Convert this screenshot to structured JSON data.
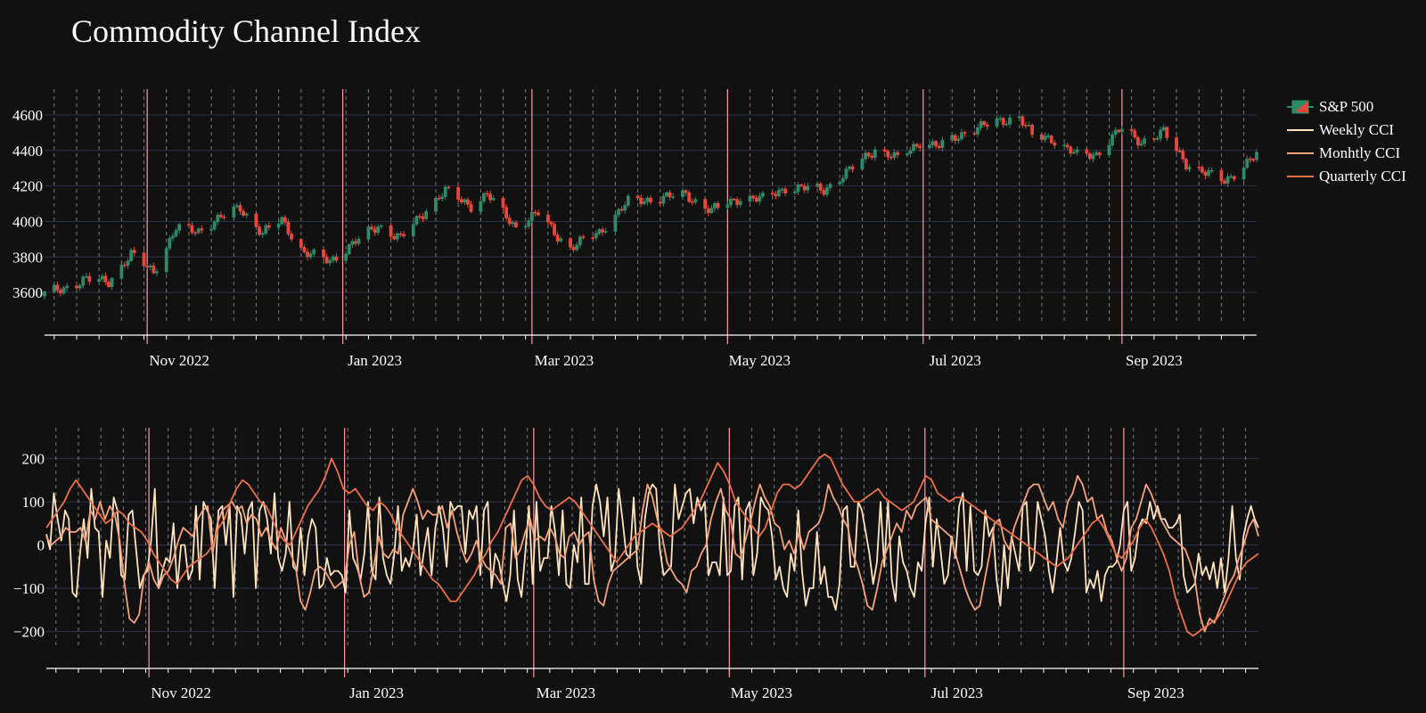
{
  "chart": {
    "title": "Commodity Channel Index",
    "colors": {
      "background": "#111111",
      "up": "#2e8b68",
      "down": "#e8483b",
      "weekly": "#ffe3bd",
      "monthly": "#f7a27a",
      "quarterly": "#ef7046",
      "month_line": "#ff9aa8",
      "grid": "#2a3344",
      "dashed": "#a0a0a0"
    },
    "legend": [
      {
        "label": "S&P 500",
        "swatch": "candle"
      },
      {
        "label": "Weekly CCI",
        "swatch": "weekly"
      },
      {
        "label": "Monhtly CCI",
        "swatch": "monthly"
      },
      {
        "label": "Quarterly CCI",
        "swatch": "quarterly"
      }
    ]
  },
  "chart_data": [
    {
      "type": "candlestick",
      "series_name": "S&P 500",
      "x_range": [
        "2022-09-30",
        "2023-10-13"
      ],
      "ylim": [
        3430,
        4670
      ],
      "yticks": [
        3600,
        3800,
        4000,
        4200,
        4400,
        4600
      ],
      "month_ticks": [
        {
          "date": "2022-11-01",
          "label": "Nov 2022"
        },
        {
          "date": "2023-01-01",
          "label": "Jan 2023"
        },
        {
          "date": "2023-03-01",
          "label": "Mar 2023"
        },
        {
          "date": "2023-05-01",
          "label": "May 2023"
        },
        {
          "date": "2023-07-01",
          "label": "Jul 2023"
        },
        {
          "date": "2023-09-01",
          "label": "Sep 2023"
        }
      ],
      "close_anchors": [
        [
          "2022-09-30",
          3590
        ],
        [
          "2022-10-13",
          3670
        ],
        [
          "2022-10-20",
          3665
        ],
        [
          "2022-10-27",
          3810
        ],
        [
          "2022-11-03",
          3720
        ],
        [
          "2022-11-10",
          3956
        ],
        [
          "2022-11-17",
          3950
        ],
        [
          "2022-11-30",
          4080
        ],
        [
          "2022-12-07",
          3930
        ],
        [
          "2022-12-13",
          4010
        ],
        [
          "2022-12-20",
          3820
        ],
        [
          "2022-12-28",
          3780
        ],
        [
          "2023-01-06",
          3895
        ],
        [
          "2023-01-12",
          3980
        ],
        [
          "2023-01-19",
          3900
        ],
        [
          "2023-01-27",
          4070
        ],
        [
          "2023-02-02",
          4170
        ],
        [
          "2023-02-10",
          4090
        ],
        [
          "2023-02-15",
          4150
        ],
        [
          "2023-02-24",
          3970
        ],
        [
          "2023-03-03",
          4045
        ],
        [
          "2023-03-09",
          3920
        ],
        [
          "2023-03-13",
          3850
        ],
        [
          "2023-03-22",
          3940
        ],
        [
          "2023-03-31",
          4110
        ],
        [
          "2023-04-18",
          4150
        ],
        [
          "2023-04-26",
          4060
        ],
        [
          "2023-05-05",
          4135
        ],
        [
          "2023-05-12",
          4125
        ],
        [
          "2023-05-19",
          4190
        ],
        [
          "2023-05-31",
          4180
        ],
        [
          "2023-06-07",
          4270
        ],
        [
          "2023-06-16",
          4410
        ],
        [
          "2023-06-23",
          4350
        ],
        [
          "2023-06-30",
          4450
        ],
        [
          "2023-07-06",
          4420
        ],
        [
          "2023-07-14",
          4505
        ],
        [
          "2023-07-26",
          4570
        ],
        [
          "2023-07-31",
          4590
        ],
        [
          "2023-08-04",
          4480
        ],
        [
          "2023-08-10",
          4470
        ],
        [
          "2023-08-18",
          4370
        ],
        [
          "2023-08-24",
          4380
        ],
        [
          "2023-08-31",
          4510
        ],
        [
          "2023-09-01",
          4515
        ],
        [
          "2023-09-07",
          4450
        ],
        [
          "2023-09-14",
          4500
        ],
        [
          "2023-09-21",
          4330
        ],
        [
          "2023-09-27",
          4270
        ],
        [
          "2023-10-03",
          4230
        ],
        [
          "2023-10-13",
          4370
        ]
      ]
    },
    {
      "type": "line",
      "x_range": [
        "2022-09-30",
        "2023-10-13"
      ],
      "ylim": [
        -240,
        240
      ],
      "yticks": [
        -200,
        -100,
        0,
        100,
        200
      ],
      "series": [
        {
          "name": "Weekly CCI",
          "color_key": "weekly",
          "values": [
            25,
            -10,
            120,
            60,
            10,
            80,
            60,
            -110,
            -120,
            -20,
            60,
            -30,
            130,
            40,
            30,
            -120,
            10,
            -30,
            110,
            80,
            -70,
            -80,
            70,
            80,
            -10,
            -100,
            -70,
            -60,
            10,
            130,
            -100,
            -60,
            -30,
            -40,
            50,
            -100,
            0,
            0,
            -80,
            -60,
            90,
            -80,
            100,
            80,
            60,
            -100,
            80,
            90,
            0,
            90,
            -120,
            90,
            70,
            -20,
            80,
            100,
            -100,
            80,
            100,
            60,
            -20,
            120,
            -30,
            -60,
            -20,
            100,
            -50,
            -60,
            40,
            -70,
            20,
            60,
            40,
            -100,
            -90,
            -30,
            -70,
            -60,
            -60,
            -70,
            -110,
            80,
            -30,
            -50,
            -80,
            -20,
            100,
            -60,
            -80,
            110,
            -30,
            -70,
            -90,
            -20,
            90,
            -60,
            -30,
            -50,
            -10,
            70,
            -70,
            -10,
            40,
            -70,
            40,
            90,
            40,
            -50,
            100,
            80,
            90,
            90,
            -20,
            80,
            60,
            90,
            -70,
            80,
            100,
            -100,
            -20,
            -40,
            -90,
            -130,
            -70,
            80,
            -80,
            -120,
            -20,
            90,
            -90,
            100,
            -60,
            -30,
            -30,
            90,
            30,
            -70,
            80,
            -90,
            -100,
            0,
            -40,
            110,
            -90,
            -90,
            90,
            140,
            100,
            20,
            110,
            -60,
            -30,
            130,
            60,
            -20,
            -30,
            110,
            -50,
            -90,
            60,
            120,
            140,
            130,
            -10,
            -70,
            -60,
            -50,
            140,
            60,
            90,
            120,
            130,
            50,
            110,
            80,
            100,
            -70,
            -40,
            -40,
            -70,
            110,
            -70,
            -60,
            90,
            110,
            -80,
            80,
            100,
            -70,
            -20,
            110,
            90,
            80,
            20,
            -80,
            -50,
            -100,
            -120,
            -20,
            -60,
            80,
            -60,
            -140,
            -100,
            -100,
            30,
            -90,
            -50,
            -120,
            -120,
            -150,
            -90,
            80,
            90,
            -50,
            -50,
            100,
            80,
            30,
            -20,
            -90,
            -40,
            100,
            -50,
            100,
            -80,
            -130,
            20,
            -40,
            -60,
            -100,
            -120,
            -40,
            -60,
            50,
            110,
            -50,
            60,
            -10,
            -90,
            -70,
            20,
            -30,
            90,
            120,
            -60,
            90,
            -60,
            -70,
            -50,
            80,
            20,
            40,
            -80,
            -140,
            0,
            -100,
            20,
            -20,
            -60,
            90,
            100,
            -60,
            -40,
            100,
            60,
            20,
            -60,
            -110,
            -40,
            40,
            -40,
            -60,
            -30,
            30,
            100,
            80,
            -110,
            -80,
            -100,
            -60,
            -130,
            -70,
            -50,
            -50,
            -40,
            0,
            80,
            100,
            -60,
            -30,
            40,
            60,
            50,
            100,
            60,
            90,
            60,
            60,
            40,
            40,
            50,
            70,
            -70,
            -110,
            -100,
            -90,
            -20,
            -70,
            -50,
            -80,
            -40,
            -100,
            -30,
            -110,
            -30,
            90,
            -30,
            -80,
            20,
            60,
            90,
            60,
            40
          ]
        },
        {
          "name": "Monhtly CCI",
          "color_key": "monthly",
          "values": [
            20,
            0,
            10,
            20,
            40,
            30,
            30,
            40,
            10,
            80,
            60,
            100,
            60,
            90,
            70,
            10,
            -90,
            -170,
            -180,
            -160,
            -70,
            -40,
            -80,
            -100,
            -70,
            -60,
            -30,
            10,
            40,
            30,
            20,
            60,
            80,
            90,
            -20,
            50,
            80,
            90,
            100,
            80,
            90,
            50,
            70,
            60,
            20,
            40,
            10,
            -10,
            40,
            10,
            -20,
            -50,
            -130,
            -150,
            -110,
            -60,
            -50,
            -60,
            -80,
            -100,
            -90,
            -80,
            0,
            30,
            -70,
            -120,
            -110,
            -50,
            20,
            -20,
            -30,
            -10,
            -20,
            70,
            100,
            130,
            100,
            60,
            80,
            70,
            70,
            90,
            40,
            80,
            30,
            -10,
            -40,
            -20,
            10,
            -30,
            -50,
            -60,
            -70,
            -90,
            40,
            50,
            -30,
            -10,
            30,
            60,
            10,
            20,
            10,
            40,
            20,
            -20,
            -30,
            20,
            30,
            0,
            20,
            30,
            -80,
            -130,
            -140,
            -90,
            -60,
            -50,
            -40,
            -30,
            -20,
            -10,
            80,
            140,
            110,
            60,
            20,
            -40,
            -60,
            -80,
            -90,
            -110,
            -60,
            -50,
            -20,
            0,
            60,
            100,
            130,
            80,
            60,
            -20,
            -30,
            10,
            50,
            100,
            140,
            110,
            90,
            50,
            40,
            -10,
            10,
            -20,
            30,
            -10,
            30,
            40,
            50,
            80,
            140,
            110,
            90,
            60,
            40,
            -20,
            -50,
            -90,
            -140,
            -150,
            -100,
            -40,
            -10,
            20,
            50,
            30,
            80,
            60,
            90,
            100,
            110,
            60,
            50,
            40,
            30,
            20,
            -20,
            -60,
            -100,
            -130,
            -150,
            -140,
            -80,
            -20,
            50,
            60,
            10,
            -10,
            40,
            70,
            100,
            130,
            140,
            140,
            110,
            80,
            100,
            60,
            40,
            100,
            120,
            160,
            140,
            100,
            110,
            60,
            70,
            30,
            10,
            -30,
            -60,
            -30,
            40,
            60,
            100,
            140,
            120,
            90,
            60,
            40,
            20,
            10,
            0,
            -10,
            -40,
            -80,
            -160,
            -200,
            -170,
            -180,
            -150,
            -120,
            -90,
            -70,
            -30,
            0,
            40,
            60,
            20
          ]
        },
        {
          "name": "Quarterly CCI",
          "color_key": "quarterly",
          "values": [
            40,
            60,
            80,
            100,
            130,
            150,
            130,
            110,
            90,
            70,
            50,
            60,
            80,
            70,
            50,
            40,
            30,
            10,
            -20,
            -40,
            -60,
            -80,
            -90,
            -70,
            -50,
            -40,
            -30,
            -20,
            0,
            40,
            60,
            100,
            130,
            150,
            140,
            120,
            100,
            90,
            60,
            30,
            10,
            0,
            30,
            60,
            90,
            110,
            130,
            160,
            200,
            170,
            130,
            120,
            130,
            110,
            90,
            80,
            100,
            90,
            70,
            40,
            20,
            0,
            -20,
            -40,
            -60,
            -80,
            -90,
            -110,
            -130,
            -130,
            -110,
            -90,
            -70,
            -40,
            -20,
            10,
            30,
            60,
            90,
            120,
            150,
            160,
            140,
            110,
            90,
            80,
            90,
            100,
            110,
            100,
            80,
            60,
            40,
            20,
            0,
            -20,
            -40,
            -20,
            0,
            20,
            30,
            40,
            50,
            40,
            30,
            20,
            30,
            40,
            60,
            80,
            100,
            130,
            160,
            190,
            170,
            140,
            100,
            80,
            60,
            40,
            20,
            40,
            80,
            120,
            140,
            140,
            130,
            140,
            160,
            180,
            200,
            210,
            200,
            170,
            140,
            120,
            100,
            100,
            110,
            120,
            130,
            110,
            100,
            90,
            80,
            90,
            100,
            130,
            160,
            150,
            120,
            110,
            100,
            110,
            110,
            100,
            90,
            80,
            70,
            60,
            50,
            40,
            30,
            20,
            10,
            0,
            -10,
            -20,
            -30,
            -40,
            -50,
            -40,
            -30,
            -10,
            10,
            30,
            50,
            60,
            40,
            10,
            -20,
            -30,
            -10,
            10,
            40,
            60,
            40,
            10,
            -20,
            -60,
            -120,
            -160,
            -200,
            -210,
            -200,
            -190,
            -180,
            -170,
            -150,
            -120,
            -90,
            -60,
            -40,
            -30,
            -20
          ]
        }
      ],
      "month_ticks": [
        {
          "date": "2022-11-01",
          "label": "Nov 2022"
        },
        {
          "date": "2023-01-01",
          "label": "Jan 2023"
        },
        {
          "date": "2023-03-01",
          "label": "Mar 2023"
        },
        {
          "date": "2023-05-01",
          "label": "May 2023"
        },
        {
          "date": "2023-07-01",
          "label": "Jul 2023"
        },
        {
          "date": "2023-09-01",
          "label": "Sep 2023"
        }
      ]
    }
  ]
}
